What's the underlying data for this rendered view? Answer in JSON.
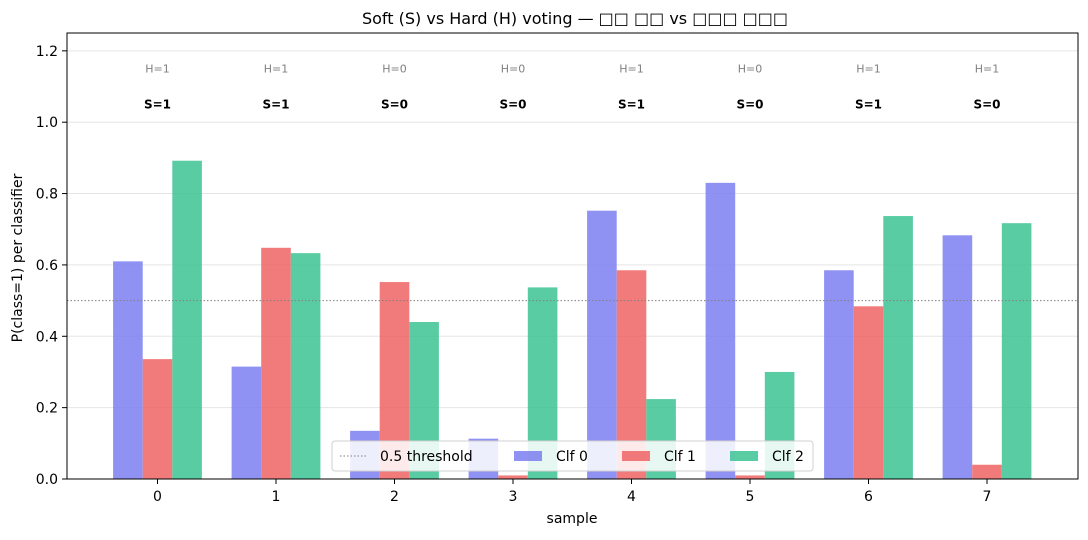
{
  "chart_data": {
    "type": "bar",
    "title": "Soft (S) vs Hard (H) voting — □□ □□ vs □□□ □□□",
    "xlabel": "sample",
    "ylabel": "P(class=1) per classifier",
    "categories": [
      "0",
      "1",
      "2",
      "3",
      "4",
      "5",
      "6",
      "7"
    ],
    "ylim": [
      0,
      1.25
    ],
    "yticks": [
      "0.0",
      "0.2",
      "0.4",
      "0.6",
      "0.8",
      "1.0",
      "1.2"
    ],
    "grid": "horizontal",
    "threshold": {
      "value": 0.5,
      "label": "0.5 threshold",
      "color": "#808080"
    },
    "series": [
      {
        "name": "Clf 0",
        "color": "#7b7ff0",
        "values": [
          0.61,
          0.315,
          0.135,
          0.113,
          0.752,
          0.83,
          0.585,
          0.683
        ]
      },
      {
        "name": "Clf 1",
        "color": "#ef6464",
        "values": [
          0.336,
          0.648,
          0.552,
          0.01,
          0.585,
          0.01,
          0.484,
          0.04
        ]
      },
      {
        "name": "Clf 2",
        "color": "#3cc393",
        "values": [
          0.892,
          0.633,
          0.44,
          0.537,
          0.224,
          0.3,
          0.737,
          0.717
        ]
      }
    ],
    "annotations": {
      "hard": [
        "H=1",
        "H=1",
        "H=0",
        "H=0",
        "H=1",
        "H=0",
        "H=1",
        "H=1"
      ],
      "soft": [
        "S=1",
        "S=1",
        "S=0",
        "S=0",
        "S=1",
        "S=0",
        "S=1",
        "S=0"
      ]
    },
    "legend_position": "bottom-center"
  }
}
